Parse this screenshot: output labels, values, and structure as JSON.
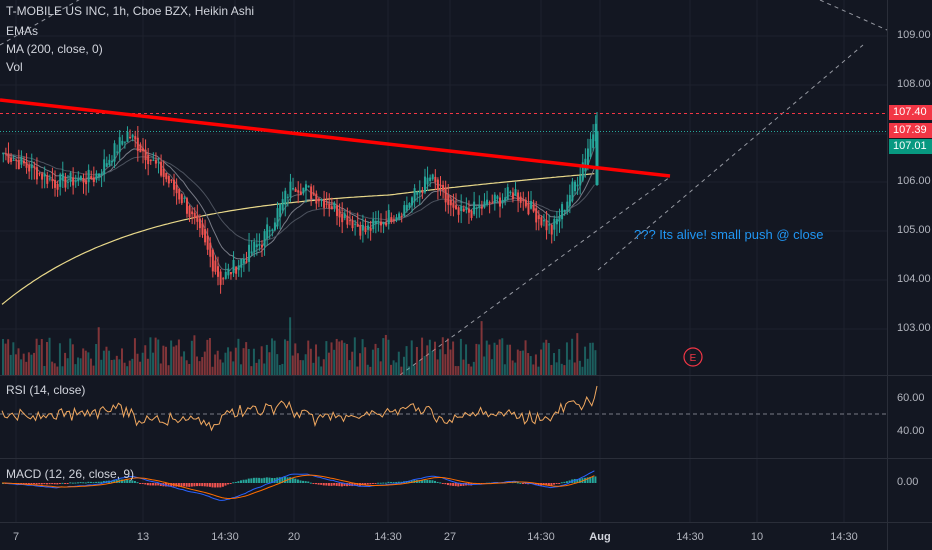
{
  "legend": {
    "symbol": "T-MOBILE US INC, 1h, Cboe BZX, Heikin Ashi",
    "ind1": "EMAs",
    "ind2": "MA (200, close, 0)",
    "ind3": "Vol"
  },
  "rsi": {
    "label": "RSI (14, close)"
  },
  "macd": {
    "label": "MACD (12, 26, close, 9)"
  },
  "annotation": "??? Its alive! small push @ close",
  "earnings_marker": "E",
  "price_axis": [
    "109.00",
    "108.00",
    "107.00",
    "106.00",
    "105.00",
    "104.00",
    "103.00"
  ],
  "price_badges": [
    {
      "value": "107.40",
      "color": "#f23645"
    },
    {
      "value": "107.39",
      "color": "#f23645"
    },
    {
      "value": "107.01",
      "color": "#089981"
    }
  ],
  "rsi_axis": [
    "60.00",
    "40.00"
  ],
  "macd_axis": [
    "0.00"
  ],
  "time_axis": [
    "7",
    "13",
    "14:30",
    "20",
    "14:30",
    "27",
    "14:30",
    "Aug",
    "14:30",
    "10",
    "14:30"
  ],
  "colors": {
    "background": "#131722",
    "up": "#26a69a",
    "down": "#ef5350",
    "trendline": "#ff0000",
    "ma200": "#e8d88a",
    "rsi": "#f0a860",
    "annotation": "#2196f3"
  }
}
